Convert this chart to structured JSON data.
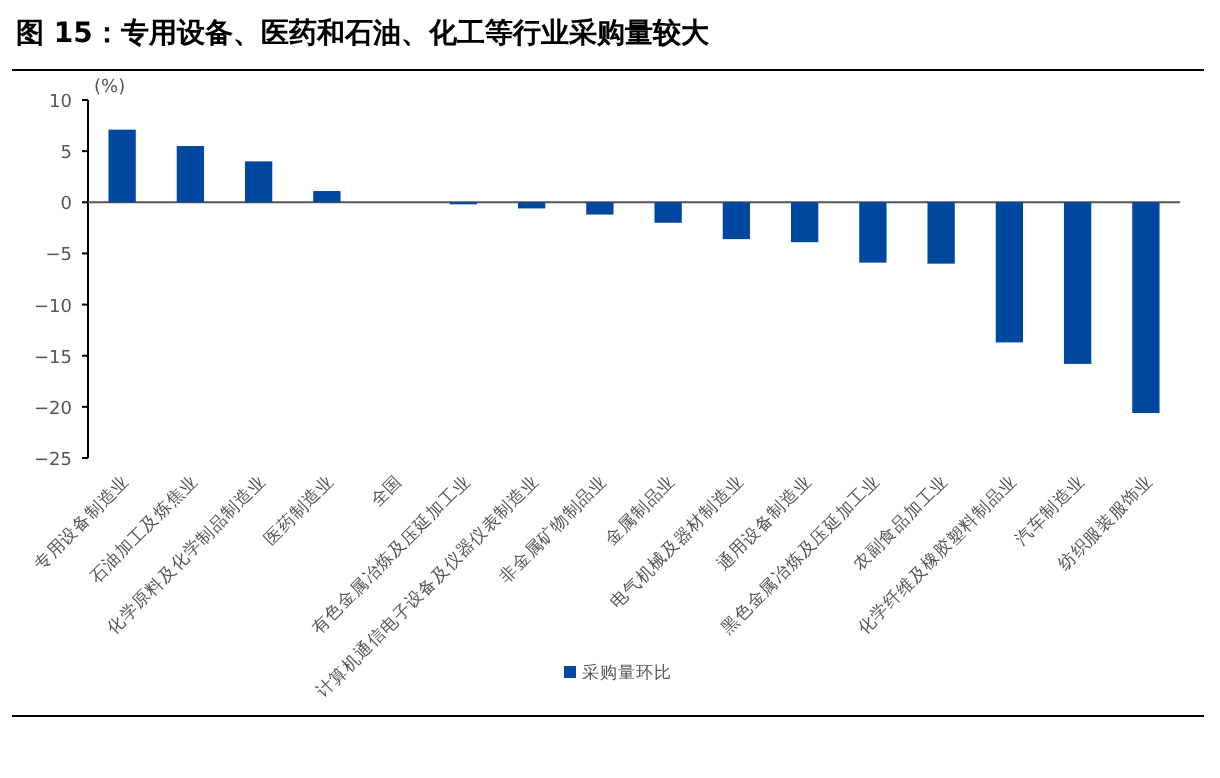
{
  "chart_data": {
    "type": "bar",
    "title": "图 15：专用设备、医药和石油、化工等行业采购量较大",
    "ylabel": "(%)",
    "categories": [
      "专用设备制造业",
      "石油加工及炼焦业",
      "化学原料及化学制品制造业",
      "医药制造业",
      "全国",
      "有色金属冶炼及压延加工业",
      "计算机通信电子设备及仪器仪表制造业",
      "非金属矿物制品业",
      "金属制品业",
      "电气机械及器材制造业",
      "通用设备制造业",
      "黑色金属冶炼及压延加工业",
      "农副食品加工业",
      "化学纤维及橡胶塑料制品业",
      "汽车制造业",
      "纺织服装服饰业"
    ],
    "series": [
      {
        "name": "采购量环比",
        "color": "#0047a0",
        "values": [
          7.1,
          5.5,
          4.0,
          1.1,
          0,
          -0.2,
          -0.6,
          -1.2,
          -2.0,
          -3.6,
          -3.9,
          -5.9,
          -6.0,
          -13.7,
          -15.8,
          -20.6
        ]
      }
    ],
    "ylim": [
      -25,
      10
    ],
    "yticks": [
      -25,
      -20,
      -15,
      -10,
      -5,
      0,
      5,
      10
    ],
    "legend": "bottom"
  }
}
